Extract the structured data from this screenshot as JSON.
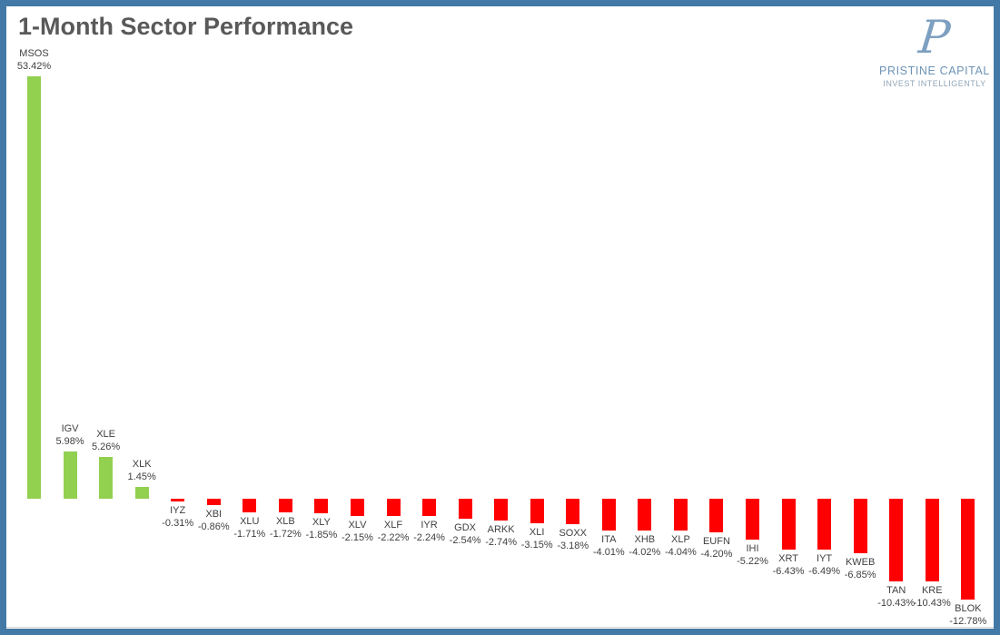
{
  "header": {
    "title": "1-Month Sector Performance"
  },
  "logo": {
    "monogram": "P",
    "name": "PRISTINE CAPITAL",
    "tagline": "INVEST INTELLIGENTLY",
    "color": "#6d93b5"
  },
  "frame_border_color": "#4379a7",
  "chart_data": {
    "type": "bar",
    "title": "1-Month Sector Performance",
    "xlabel": "",
    "ylabel": "",
    "categories": [
      "MSOS",
      "IGV",
      "XLE",
      "XLK",
      "IYZ",
      "XBI",
      "XLU",
      "XLB",
      "XLY",
      "XLV",
      "XLF",
      "IYR",
      "GDX",
      "ARKK",
      "XLI",
      "SOXX",
      "ITA",
      "XHB",
      "XLP",
      "EUFN",
      "IHI",
      "XRT",
      "IYT",
      "KWEB",
      "TAN",
      "KRE",
      "BLOK"
    ],
    "values": [
      53.42,
      5.98,
      5.26,
      1.45,
      -0.31,
      -0.86,
      -1.71,
      -1.72,
      -1.85,
      -2.15,
      -2.22,
      -2.24,
      -2.54,
      -2.74,
      -3.15,
      -3.18,
      -4.01,
      -4.02,
      -4.04,
      -4.2,
      -5.22,
      -6.43,
      -6.49,
      -6.85,
      -10.43,
      -10.43,
      -12.78
    ],
    "labels": [
      "53.42%",
      "5.98%",
      "5.26%",
      "1.45%",
      "-0.31%",
      "-0.86%",
      "-1.71%",
      "-1.72%",
      "-1.85%",
      "-2.15%",
      "-2.22%",
      "-2.24%",
      "-2.54%",
      "-2.74%",
      "-3.15%",
      "-3.18%",
      "-4.01%",
      "-4.02%",
      "-4.04%",
      "-4.20%",
      "-5.22%",
      "-6.43%",
      "-6.49%",
      "-6.85%",
      "-10.43%",
      "-10.43%",
      "-12.78%"
    ],
    "unit": "%",
    "positive_color": "#92d050",
    "negative_color": "#ff0000",
    "label_color": "#404040",
    "ylim": [
      -13,
      54
    ],
    "grid": false,
    "legend": false,
    "axis_lines": false,
    "label_position": "outside_end"
  }
}
